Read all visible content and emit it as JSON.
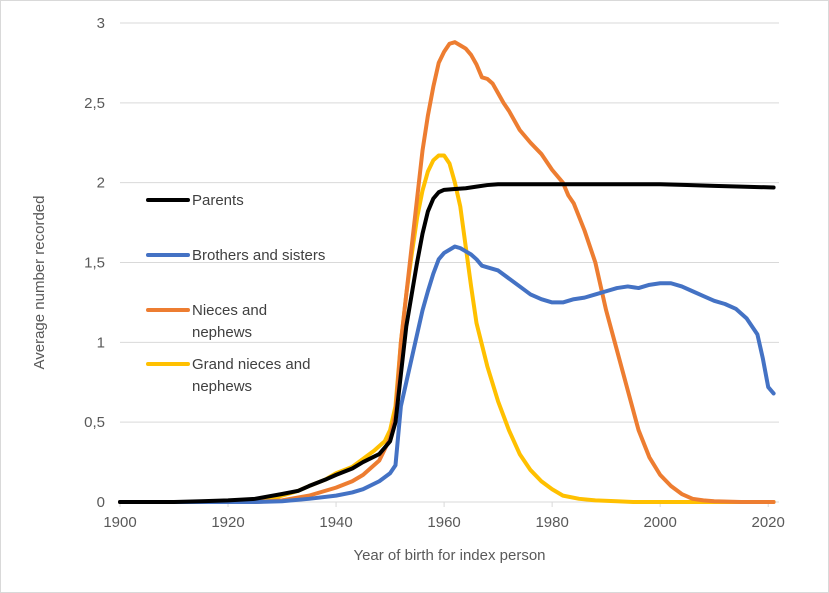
{
  "chart_data": {
    "type": "line",
    "title": "",
    "xlabel": "Year of birth for index person",
    "ylabel": "Average number recorded",
    "xlim": [
      1900,
      2022
    ],
    "ylim": [
      0,
      3
    ],
    "x_ticks": [
      1900,
      1920,
      1940,
      1960,
      1980,
      2000,
      2020
    ],
    "x_tick_labels": [
      "1900",
      "1920",
      "1940",
      "1960",
      "1980",
      "2000",
      "2020"
    ],
    "y_ticks": [
      0,
      0.5,
      1,
      1.5,
      2,
      2.5,
      3
    ],
    "y_tick_labels": [
      "0",
      "0,5",
      "1",
      "1,5",
      "2",
      "2,5",
      "3"
    ],
    "grid": "horizontal",
    "legend_position": "left-middle",
    "series": [
      {
        "name": "Parents",
        "legend_lines": [
          "Parents"
        ],
        "color": "#000000",
        "points": [
          [
            1900,
            0
          ],
          [
            1910,
            0
          ],
          [
            1915,
            0.005
          ],
          [
            1920,
            0.01
          ],
          [
            1925,
            0.02
          ],
          [
            1930,
            0.05
          ],
          [
            1933,
            0.07
          ],
          [
            1935,
            0.1
          ],
          [
            1938,
            0.14
          ],
          [
            1940,
            0.17
          ],
          [
            1943,
            0.21
          ],
          [
            1945,
            0.25
          ],
          [
            1948,
            0.3
          ],
          [
            1950,
            0.38
          ],
          [
            1951,
            0.5
          ],
          [
            1952,
            0.8
          ],
          [
            1953,
            1.1
          ],
          [
            1954,
            1.3
          ],
          [
            1955,
            1.5
          ],
          [
            1956,
            1.68
          ],
          [
            1957,
            1.82
          ],
          [
            1958,
            1.9
          ],
          [
            1959,
            1.94
          ],
          [
            1960,
            1.955
          ],
          [
            1962,
            1.96
          ],
          [
            1964,
            1.965
          ],
          [
            1966,
            1.975
          ],
          [
            1968,
            1.985
          ],
          [
            1970,
            1.99
          ],
          [
            1980,
            1.99
          ],
          [
            1990,
            1.99
          ],
          [
            2000,
            1.99
          ],
          [
            2005,
            1.985
          ],
          [
            2010,
            1.98
          ],
          [
            2015,
            1.975
          ],
          [
            2021,
            1.97
          ]
        ]
      },
      {
        "name": "Brothers and sisters",
        "legend_lines": [
          "Brothers and sisters"
        ],
        "color": "#4472c4",
        "points": [
          [
            1900,
            0
          ],
          [
            1925,
            0
          ],
          [
            1930,
            0.005
          ],
          [
            1935,
            0.02
          ],
          [
            1940,
            0.04
          ],
          [
            1943,
            0.06
          ],
          [
            1945,
            0.08
          ],
          [
            1948,
            0.13
          ],
          [
            1950,
            0.18
          ],
          [
            1951,
            0.23
          ],
          [
            1952,
            0.6
          ],
          [
            1953,
            0.75
          ],
          [
            1954,
            0.9
          ],
          [
            1955,
            1.05
          ],
          [
            1956,
            1.2
          ],
          [
            1957,
            1.32
          ],
          [
            1958,
            1.43
          ],
          [
            1959,
            1.52
          ],
          [
            1960,
            1.56
          ],
          [
            1961,
            1.58
          ],
          [
            1962,
            1.6
          ],
          [
            1963,
            1.59
          ],
          [
            1964,
            1.57
          ],
          [
            1965,
            1.55
          ],
          [
            1966,
            1.52
          ],
          [
            1967,
            1.48
          ],
          [
            1968,
            1.47
          ],
          [
            1970,
            1.45
          ],
          [
            1972,
            1.4
          ],
          [
            1974,
            1.35
          ],
          [
            1976,
            1.3
          ],
          [
            1978,
            1.27
          ],
          [
            1980,
            1.25
          ],
          [
            1982,
            1.25
          ],
          [
            1984,
            1.27
          ],
          [
            1986,
            1.28
          ],
          [
            1988,
            1.3
          ],
          [
            1990,
            1.32
          ],
          [
            1992,
            1.34
          ],
          [
            1994,
            1.35
          ],
          [
            1996,
            1.34
          ],
          [
            1998,
            1.36
          ],
          [
            2000,
            1.37
          ],
          [
            2002,
            1.37
          ],
          [
            2004,
            1.35
          ],
          [
            2006,
            1.32
          ],
          [
            2008,
            1.29
          ],
          [
            2010,
            1.26
          ],
          [
            2012,
            1.24
          ],
          [
            2014,
            1.21
          ],
          [
            2016,
            1.15
          ],
          [
            2018,
            1.05
          ],
          [
            2019,
            0.9
          ],
          [
            2020,
            0.72
          ],
          [
            2021,
            0.68
          ]
        ]
      },
      {
        "name": "Nieces and nephews",
        "legend_lines": [
          "Nieces and",
          "nephews"
        ],
        "color": "#ed7d31",
        "points": [
          [
            1900,
            0
          ],
          [
            1925,
            0
          ],
          [
            1930,
            0.01
          ],
          [
            1935,
            0.04
          ],
          [
            1940,
            0.09
          ],
          [
            1943,
            0.13
          ],
          [
            1945,
            0.17
          ],
          [
            1948,
            0.26
          ],
          [
            1950,
            0.4
          ],
          [
            1951,
            0.55
          ],
          [
            1952,
            1.0
          ],
          [
            1953,
            1.3
          ],
          [
            1954,
            1.6
          ],
          [
            1955,
            1.9
          ],
          [
            1956,
            2.2
          ],
          [
            1957,
            2.42
          ],
          [
            1958,
            2.6
          ],
          [
            1959,
            2.75
          ],
          [
            1960,
            2.82
          ],
          [
            1961,
            2.87
          ],
          [
            1962,
            2.88
          ],
          [
            1963,
            2.86
          ],
          [
            1964,
            2.84
          ],
          [
            1965,
            2.8
          ],
          [
            1966,
            2.74
          ],
          [
            1967,
            2.66
          ],
          [
            1968,
            2.65
          ],
          [
            1969,
            2.62
          ],
          [
            1970,
            2.56
          ],
          [
            1971,
            2.5
          ],
          [
            1972,
            2.45
          ],
          [
            1974,
            2.33
          ],
          [
            1976,
            2.25
          ],
          [
            1978,
            2.18
          ],
          [
            1980,
            2.08
          ],
          [
            1982,
            2.0
          ],
          [
            1983,
            1.92
          ],
          [
            1984,
            1.87
          ],
          [
            1986,
            1.7
          ],
          [
            1988,
            1.5
          ],
          [
            1990,
            1.2
          ],
          [
            1992,
            0.95
          ],
          [
            1994,
            0.7
          ],
          [
            1996,
            0.45
          ],
          [
            1998,
            0.28
          ],
          [
            2000,
            0.17
          ],
          [
            2002,
            0.1
          ],
          [
            2004,
            0.05
          ],
          [
            2006,
            0.02
          ],
          [
            2008,
            0.01
          ],
          [
            2010,
            0.005
          ],
          [
            2015,
            0
          ],
          [
            2021,
            0
          ]
        ]
      },
      {
        "name": "Grand nieces and nephews",
        "legend_lines": [
          "Grand nieces and",
          "nephews"
        ],
        "color": "#ffc000",
        "points": [
          [
            1900,
            0
          ],
          [
            1925,
            0
          ],
          [
            1928,
            0.02
          ],
          [
            1930,
            0.04
          ],
          [
            1933,
            0.07
          ],
          [
            1935,
            0.1
          ],
          [
            1938,
            0.14
          ],
          [
            1940,
            0.18
          ],
          [
            1943,
            0.22
          ],
          [
            1945,
            0.27
          ],
          [
            1947,
            0.32
          ],
          [
            1949,
            0.38
          ],
          [
            1950,
            0.45
          ],
          [
            1951,
            0.6
          ],
          [
            1952,
            1.0
          ],
          [
            1953,
            1.3
          ],
          [
            1954,
            1.55
          ],
          [
            1955,
            1.78
          ],
          [
            1956,
            1.95
          ],
          [
            1957,
            2.07
          ],
          [
            1958,
            2.14
          ],
          [
            1959,
            2.17
          ],
          [
            1960,
            2.17
          ],
          [
            1961,
            2.12
          ],
          [
            1962,
            2.0
          ],
          [
            1963,
            1.85
          ],
          [
            1964,
            1.6
          ],
          [
            1965,
            1.35
          ],
          [
            1966,
            1.12
          ],
          [
            1968,
            0.85
          ],
          [
            1970,
            0.63
          ],
          [
            1972,
            0.45
          ],
          [
            1974,
            0.3
          ],
          [
            1976,
            0.2
          ],
          [
            1978,
            0.13
          ],
          [
            1980,
            0.08
          ],
          [
            1982,
            0.04
          ],
          [
            1985,
            0.02
          ],
          [
            1988,
            0.01
          ],
          [
            1992,
            0.005
          ],
          [
            1995,
            0
          ],
          [
            2021,
            0
          ]
        ]
      }
    ]
  }
}
